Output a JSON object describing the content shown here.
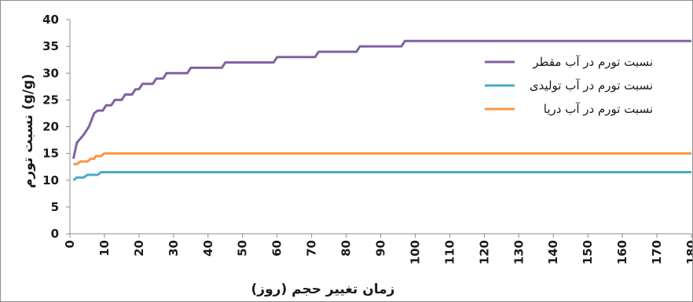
{
  "chart_data": {
    "type": "line",
    "title": "",
    "xlabel": "زمان تغییر حجم (روز)",
    "ylabel": "نسبت تورم (g/g)",
    "xlim": [
      0,
      180
    ],
    "ylim": [
      0,
      40
    ],
    "x_ticks": [
      0,
      10,
      20,
      30,
      40,
      50,
      60,
      70,
      80,
      90,
      100,
      110,
      120,
      130,
      140,
      150,
      160,
      170,
      180
    ],
    "x_tick_labels": [
      "0",
      "10",
      "20",
      "30",
      "40",
      "50",
      "60",
      "70",
      "80",
      "90",
      "100",
      "110",
      "120",
      "130",
      "140",
      "150",
      "160",
      "170",
      "180"
    ],
    "y_ticks": [
      0,
      5,
      10,
      15,
      20,
      25,
      30,
      35,
      40
    ],
    "y_tick_labels": [
      "0",
      "5",
      "10",
      "15",
      "20",
      "25",
      "30",
      "35",
      "40"
    ],
    "grid": false,
    "legend_position": "right",
    "series": [
      {
        "name": "نسبت تورم در آب مقطر",
        "color": "#7f62a1",
        "points": [
          [
            1,
            14
          ],
          [
            2,
            17
          ],
          [
            4,
            18.5
          ],
          [
            5.5,
            20
          ],
          [
            7,
            22.5
          ],
          [
            8,
            23
          ],
          [
            9.5,
            23
          ],
          [
            10.5,
            24
          ],
          [
            12,
            24
          ],
          [
            13,
            25
          ],
          [
            15,
            25
          ],
          [
            16,
            26
          ],
          [
            18,
            26
          ],
          [
            19,
            27
          ],
          [
            20,
            27
          ],
          [
            21,
            28
          ],
          [
            24,
            28
          ],
          [
            25,
            29
          ],
          [
            27,
            29
          ],
          [
            28,
            30
          ],
          [
            34,
            30
          ],
          [
            35,
            31
          ],
          [
            44,
            31
          ],
          [
            45,
            32
          ],
          [
            59,
            32
          ],
          [
            60,
            33
          ],
          [
            71,
            33
          ],
          [
            72,
            34
          ],
          [
            83,
            34
          ],
          [
            84,
            35
          ],
          [
            96,
            35
          ],
          [
            97,
            36
          ],
          [
            180,
            36
          ]
        ]
      },
      {
        "name": "نسبت تورم در آب تولیدی",
        "color": "#4aacc6",
        "points": [
          [
            1,
            10
          ],
          [
            2,
            10.5
          ],
          [
            4,
            10.5
          ],
          [
            5,
            11
          ],
          [
            8,
            11
          ],
          [
            9,
            11.5
          ],
          [
            180,
            11.5
          ]
        ]
      },
      {
        "name": "نسبت تورم در آب دریا",
        "color": "#f79646",
        "points": [
          [
            1,
            13
          ],
          [
            2,
            13
          ],
          [
            3,
            13.5
          ],
          [
            5,
            13.5
          ],
          [
            6,
            14
          ],
          [
            7,
            14
          ],
          [
            7.5,
            14.5
          ],
          [
            9,
            14.5
          ],
          [
            10,
            15
          ],
          [
            180,
            15
          ]
        ]
      }
    ]
  }
}
